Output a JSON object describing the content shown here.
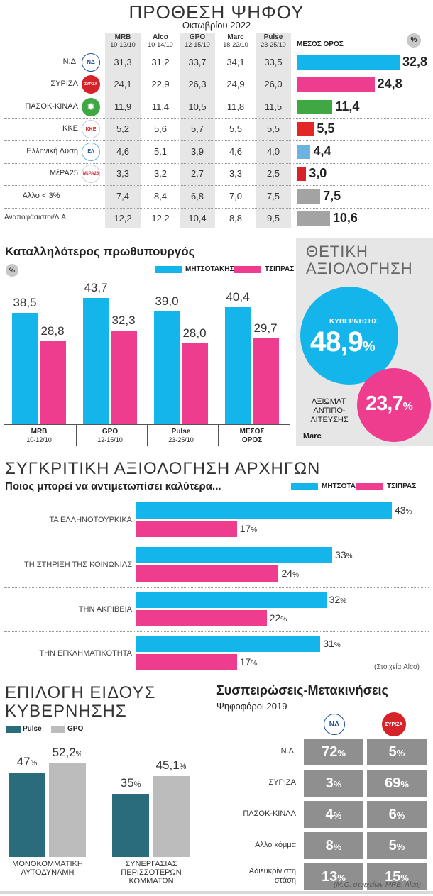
{
  "colors": {
    "mitsotakis": "#13b5ea",
    "tsipras": "#ee3d8f",
    "pulse": "#2a6b7c",
    "gpo": "#bcbcbc",
    "nd": "#13b5ea",
    "syriza": "#ee3d8f",
    "pasok": "#3fa843",
    "kke": "#e32726",
    "el": "#6cb3e1",
    "mera": "#d6232a",
    "allo": "#a3a3a3",
    "anap": "#a3a3a3"
  },
  "poll": {
    "title": "ΠΡΟΘΕΣΗ ΨΗΦΟΥ",
    "subtitle": "Οκτωβρίου 2022",
    "avg_header": "ΜΕΣΟΣ ΟΡΟΣ",
    "pct": "%",
    "columns": [
      {
        "name": "MRB",
        "dates": "10-12/10"
      },
      {
        "name": "Alco",
        "dates": "10-14/10"
      },
      {
        "name": "GPO",
        "dates": "12-15/10"
      },
      {
        "name": "Marc",
        "dates": "18-22/10"
      },
      {
        "name": "Pulse",
        "dates": "23-25/10"
      }
    ],
    "chart_data": {
      "type": "bar",
      "title": "ΠΡΟΘΕΣΗ ΨΗΦΟΥ — ΜΕΣΟΣ ΟΡΟΣ",
      "categories": [
        "Ν.Δ.",
        "ΣΥΡΙΖΑ",
        "ΠΑΣΟΚ-ΚΙΝΑΛ",
        "ΚΚΕ",
        "Ελληνική Λύση",
        "ΜέΡΑ25",
        "Αλλο < 3%",
        "Αναποφάσιστοι/Δ.Α."
      ],
      "values": [
        32.8,
        24.8,
        11.4,
        5.5,
        4.4,
        3.0,
        7.5,
        10.6
      ],
      "ylim": [
        0,
        35
      ]
    },
    "rows": [
      {
        "party": "Ν.Δ.",
        "logo": "ΝΔ",
        "values": [
          "31,3",
          "31,2",
          "33,7",
          "34,1",
          "33,5"
        ],
        "avg": "32,8",
        "avg_num": 32.8,
        "color": "nd"
      },
      {
        "party": "ΣΥΡΙΖΑ",
        "logo": "ΣΥΡΙΖΑ",
        "values": [
          "24,1",
          "22,9",
          "26,3",
          "24,9",
          "26,0"
        ],
        "avg": "24,8",
        "avg_num": 24.8,
        "color": "syriza"
      },
      {
        "party": "ΠΑΣΟΚ-ΚΙΝΑΛ",
        "logo": "✹",
        "values": [
          "11,9",
          "11,4",
          "10,5",
          "11,8",
          "11,5"
        ],
        "avg": "11,4",
        "avg_num": 11.4,
        "color": "pasok"
      },
      {
        "party": "ΚΚΕ",
        "logo": "ΚΚΕ",
        "values": [
          "5,2",
          "5,6",
          "5,7",
          "5,5",
          "5,5"
        ],
        "avg": "5,5",
        "avg_num": 5.5,
        "color": "kke"
      },
      {
        "party": "Ελληνική Λύση",
        "logo": "ΕΛ",
        "values": [
          "4,6",
          "5,1",
          "3,9",
          "4,6",
          "4,0"
        ],
        "avg": "4,4",
        "avg_num": 4.4,
        "color": "el"
      },
      {
        "party": "ΜέΡΑ25",
        "logo": "ΜέΡΑ25",
        "values": [
          "3,3",
          "3,2",
          "2,7",
          "3,3",
          "2,5"
        ],
        "avg": "3,0",
        "avg_num": 3.0,
        "color": "mera"
      },
      {
        "party": "Αλλο < 3%",
        "logo": "",
        "values": [
          "7,4",
          "8,4",
          "6,8",
          "7,0",
          "7,5"
        ],
        "avg": "7,5",
        "avg_num": 7.5,
        "color": "allo"
      },
      {
        "party": "Αναποφάσιστοι/Δ.Α.",
        "logo": "",
        "values": [
          "12,2",
          "12,2",
          "10,4",
          "8,8",
          "9,5"
        ],
        "avg": "10,6",
        "avg_num": 10.6,
        "color": "anap"
      }
    ]
  },
  "pm": {
    "title": "Καταλληλότερος πρωθυπουργός",
    "pct": "%",
    "legend": [
      "ΜΗΤΣΟΤΑΚΗΣ",
      "ΤΣΙΠΡΑΣ"
    ],
    "chart_data": {
      "type": "bar",
      "title": "Καταλληλότερος πρωθυπουργός",
      "categories": [
        "MRB 10-12/10",
        "GPO 12-15/10",
        "Pulse 23-25/10",
        "ΜΕΣΟΣ ΟΡΟΣ"
      ],
      "series": [
        {
          "name": "ΜΗΤΣΟΤΑΚΗΣ",
          "values": [
            38.5,
            43.7,
            39.0,
            40.4
          ]
        },
        {
          "name": "ΤΣΙΠΡΑΣ",
          "values": [
            28.8,
            32.3,
            28.0,
            29.7
          ]
        }
      ],
      "ylim": [
        0,
        45
      ]
    },
    "groups": [
      {
        "l1": "MRB",
        "l2": "10-12/10",
        "m": "38,5",
        "t": "28,8"
      },
      {
        "l1": "GPO",
        "l2": "12-15/10",
        "m": "43,7",
        "t": "32,3"
      },
      {
        "l1": "Pulse",
        "l2": "23-25/10",
        "m": "39,0",
        "t": "28,0"
      },
      {
        "l1": "ΜΕΣΟΣ",
        "l2": "ΟΡΟΣ",
        "m": "40,4",
        "t": "29,7"
      }
    ]
  },
  "rating": {
    "title1": "ΘΕΤΙΚΗ",
    "title2": "ΑΞΙΟΛΟΓΗΣΗ",
    "gov_label": "ΚΥΒΕΡΝΗΣΗΣ",
    "gov_value": "48,9",
    "opp_l1": "ΑΞΙΩΜΑΤ.",
    "opp_l2": "ΑΝΤΙΠΟ-",
    "opp_l3": "ΛΙΤΕΥΣΗΣ",
    "opp_value": "23,7",
    "pct": "%",
    "source": "Marc"
  },
  "compare": {
    "title": "ΣΥΓΚΡΙΤΙΚΗ ΑΞΙΟΛΟΓΗΣΗ ΑΡΧΗΓΩΝ",
    "subtitle": "Ποιος μπορεί να αντιμετωπίσει καλύτερα...",
    "legend": [
      "ΜΗΤΣΟΤΑΚΗΣ",
      "ΤΣΙΠΡΑΣ"
    ],
    "pct": "%",
    "source": "(Στοιχεία Alco)",
    "chart_data": {
      "type": "bar",
      "title": "ΣΥΓΚΡΙΤΙΚΗ ΑΞΙΟΛΟΓΗΣΗ ΑΡΧΗΓΩΝ",
      "categories": [
        "ΤΑ ΕΛΛΗΝΟΤΟΥΡΚΙΚΑ",
        "ΤΗ ΣΤΗΡΙΞΗ ΤΗΣ ΚΟΙΝΩΝΙΑΣ",
        "ΤΗΝ ΑΚΡΙΒΕΙΑ",
        "ΤΗΝ ΕΓΚΛΗΜΑΤΙΚΟΤΗΤΑ"
      ],
      "series": [
        {
          "name": "ΜΗΤΣΟΤΑΚΗΣ",
          "values": [
            43,
            33,
            32,
            31
          ]
        },
        {
          "name": "ΤΣΙΠΡΑΣ",
          "values": [
            17,
            24,
            22,
            17
          ]
        }
      ],
      "ylim": [
        0,
        45
      ]
    },
    "items": [
      {
        "label": "ΤΑ ΕΛΛΗΝΟΤΟΥΡΚΙΚΑ",
        "m": "43",
        "t": "17"
      },
      {
        "label": "ΤΗ ΣΤΗΡΙΞΗ ΤΗΣ ΚΟΙΝΩΝΙΑΣ",
        "m": "33",
        "t": "24"
      },
      {
        "label": "ΤΗΝ ΑΚΡΙΒΕΙΑ",
        "m": "32",
        "t": "22"
      },
      {
        "label": "ΤΗΝ ΕΓΚΛΗΜΑΤΙΚΟΤΗΤΑ",
        "m": "31",
        "t": "17"
      }
    ]
  },
  "gov": {
    "title1": "ΕΠΙΛΟΓΗ ΕΙΔΟΥΣ",
    "title2": "ΚΥΒΕΡΝΗΣΗΣ",
    "legend": [
      "Pulse",
      "GPO"
    ],
    "pct": "%",
    "chart_data": {
      "type": "bar",
      "title": "ΕΠΙΛΟΓΗ ΕΙΔΟΥΣ ΚΥΒΕΡΝΗΣΗΣ",
      "categories": [
        "ΜΟΝΟΚΟΜΜΑΤΙΚΗ ΑΥΤΟΔΥΝΑΜΗ",
        "ΣΥΝΕΡΓΑΣΙΑΣ ΠΕΡΙΣΣΟΤΕΡΩΝ ΚΟΜΜΑΤΩΝ"
      ],
      "series": [
        {
          "name": "Pulse",
          "values": [
            47,
            35
          ]
        },
        {
          "name": "GPO",
          "values": [
            52.2,
            45.1
          ]
        }
      ],
      "ylim": [
        0,
        55
      ]
    },
    "groups": [
      {
        "l1": "ΜΟΝΟΚΟΜΜΑΤΙΚΗ",
        "l2": "ΑΥΤΟΔΥΝΑΜΗ",
        "l3": "",
        "p": "47",
        "g": "52,2"
      },
      {
        "l1": "ΣΥΝΕΡΓΑΣΙΑΣ",
        "l2": "ΠΕΡΙΣΣΟΤΕΡΩΝ",
        "l3": "ΚΟΜΜΑΤΩΝ",
        "p": "35",
        "g": "45,1"
      }
    ]
  },
  "swing": {
    "title": "Συσπειρώσεις-Μετακινήσεις",
    "subtitle": "Ψηφοφόροι 2019",
    "logos": [
      "ΝΔ",
      "ΣΥΡΙΖΑ"
    ],
    "pct": "%",
    "source": "(Μ.Ο. στοιχείων MRB, Alco)",
    "rows": [
      {
        "label1": "Ν.Δ.",
        "label2": "",
        "nd": "72",
        "sy": "5"
      },
      {
        "label1": "ΣΥΡΙΖΑ",
        "label2": "",
        "nd": "3",
        "sy": "69"
      },
      {
        "label1": "ΠΑΣΟΚ-ΚΙΝΑΛ",
        "label2": "",
        "nd": "4",
        "sy": "6"
      },
      {
        "label1": "Αλλο κόμμα",
        "label2": "",
        "nd": "8",
        "sy": "5"
      },
      {
        "label1": "Αδιευκρίνιστη",
        "label2": "στάση",
        "nd": "13",
        "sy": "15"
      }
    ]
  }
}
